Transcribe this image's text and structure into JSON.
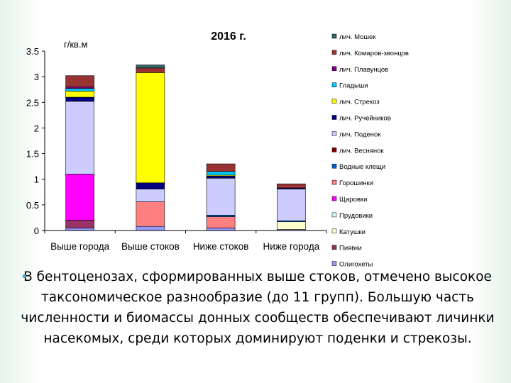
{
  "chart_data": {
    "type": "bar",
    "stacked": true,
    "title": "2016 г.",
    "ylabel": "г/кв.м",
    "xlabel": "",
    "ylim": [
      0,
      3.5
    ],
    "yticks": [
      0,
      0.5,
      1,
      1.5,
      2,
      2.5,
      3,
      3.5
    ],
    "ytick_labels": [
      "0",
      "0.5",
      "1",
      "1.5",
      "2",
      "2.5",
      "3",
      "3.5"
    ],
    "categories": [
      "Выше города",
      "Выше стоков",
      "Ниже стоков",
      "Ниже города"
    ],
    "grid": false,
    "legend_position": "right",
    "series": [
      {
        "name": "Олигохеты",
        "color": "#9999ff",
        "values": [
          0.05,
          0.08,
          0.05,
          0.02
        ]
      },
      {
        "name": "Пиявки",
        "color": "#993366",
        "values": [
          0.15,
          0.0,
          0.0,
          0.0
        ]
      },
      {
        "name": "Катушки",
        "color": "#ffffcc",
        "values": [
          0.0,
          0.0,
          0.0,
          0.15
        ]
      },
      {
        "name": "Прудовики",
        "color": "#ccffff",
        "values": [
          0.0,
          0.0,
          0.0,
          0.0
        ]
      },
      {
        "name": "Щаровки",
        "color": "#ff00ff",
        "values": [
          0.9,
          0.0,
          0.0,
          0.0
        ]
      },
      {
        "name": "Горошинки",
        "color": "#ff8080",
        "values": [
          0.0,
          0.48,
          0.22,
          0.0
        ]
      },
      {
        "name": "Водные клещи",
        "color": "#0066cc",
        "values": [
          0.0,
          0.0,
          0.03,
          0.02
        ]
      },
      {
        "name": "лич. Веснянок",
        "color": "#800000",
        "values": [
          0.0,
          0.0,
          0.0,
          0.0
        ]
      },
      {
        "name": "лич. Поденок",
        "color": "#ccccff",
        "values": [
          1.42,
          0.25,
          0.72,
          0.62
        ]
      },
      {
        "name": "лич. Ручейников",
        "color": "#000080",
        "values": [
          0.08,
          0.12,
          0.04,
          0.02
        ]
      },
      {
        "name": "лич. Стрекоз",
        "color": "#ffff00",
        "values": [
          0.12,
          2.15,
          0.02,
          0.0
        ]
      },
      {
        "name": "Гладыши",
        "color": "#00ccff",
        "values": [
          0.05,
          0.0,
          0.07,
          0.0
        ]
      },
      {
        "name": "лич. Плавунцов",
        "color": "#800080",
        "values": [
          0.03,
          0.0,
          0.0,
          0.0
        ]
      },
      {
        "name": "лич. Комаров-звонцов",
        "color": "#993333",
        "values": [
          0.22,
          0.09,
          0.15,
          0.08
        ]
      },
      {
        "name": "лич. Мошек",
        "color": "#336666",
        "values": [
          0.0,
          0.06,
          0.0,
          0.0
        ]
      }
    ]
  },
  "caption": {
    "bullet": "•",
    "text": "В бентоценозах, сформированных выше стоков, отмечено высокое таксономическое разнообразие (до 11 групп). Большую часть численности и биомассы донных сообществ обеспечивают личинки насекомых, среди которых доминируют поденки и стрекозы."
  }
}
